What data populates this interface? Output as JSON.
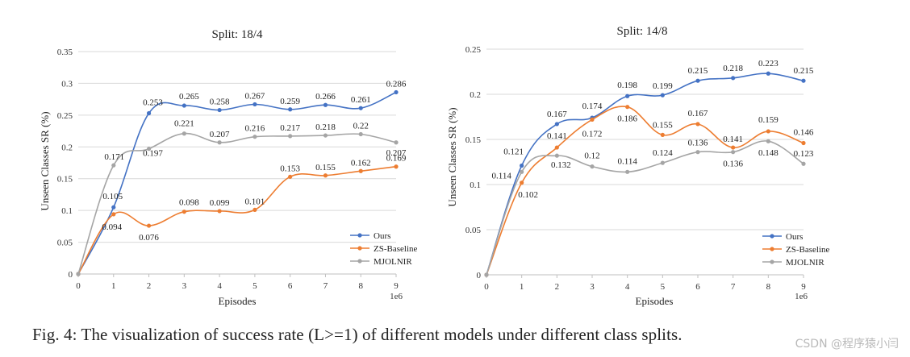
{
  "caption": "Fig. 4: The visualization of success rate (L>=1) of different models under different class splits.",
  "watermark": "CSDN @程序猿小闫",
  "colors": {
    "ours": "#4472c4",
    "zs_baseline": "#ed7d31",
    "mjolnir": "#a5a5a5",
    "grid": "#d9d9d9",
    "axis": "#bfbfbf"
  },
  "chart_data": [
    {
      "type": "line",
      "title": "Split: 18/4",
      "xlabel": "Episodes",
      "ylabel": "Unseen Classes SR (%)",
      "x_scale_label": "1e6",
      "x": [
        0,
        1,
        2,
        3,
        4,
        5,
        6,
        7,
        8,
        9
      ],
      "xlim": [
        0,
        9
      ],
      "ylim": [
        0,
        0.35
      ],
      "yticks": [
        0,
        0.05,
        0.1,
        0.15,
        0.2,
        0.25,
        0.3,
        0.35
      ],
      "ytick_labels": [
        "0",
        "0.05",
        "0.1",
        "0.15",
        "0.2",
        "0.25",
        "0.3",
        "0.35"
      ],
      "xtick_labels": [
        "0",
        "1",
        "2",
        "3",
        "4",
        "5",
        "6",
        "7",
        "8",
        "9"
      ],
      "grid": true,
      "legend_position": "bottom-right",
      "series": [
        {
          "name": "Ours",
          "color": "#4472c4",
          "values": [
            0,
            0.105,
            0.253,
            0.265,
            0.258,
            0.267,
            0.259,
            0.266,
            0.261,
            0.286
          ],
          "labels": [
            "",
            "0.105",
            "0.253",
            "0.265",
            "0.258",
            "0.267",
            "0.259",
            "0.266",
            "0.261",
            "0.286"
          ]
        },
        {
          "name": "ZS-Baseline",
          "color": "#ed7d31",
          "values": [
            0,
            0.094,
            0.076,
            0.098,
            0.099,
            0.101,
            0.153,
            0.155,
            0.162,
            0.169
          ],
          "labels": [
            "",
            "0.094",
            "0.076",
            "0.098",
            "0.099",
            "0.101",
            "0.153",
            "0.155",
            "0.162",
            "0.169"
          ]
        },
        {
          "name": "MJOLNIR",
          "color": "#a5a5a5",
          "values": [
            0,
            0.171,
            0.197,
            0.221,
            0.207,
            0.216,
            0.217,
            0.218,
            0.22,
            0.207
          ],
          "labels": [
            "",
            "0.171",
            "0.197",
            "0.221",
            "0.207",
            "0.216",
            "0.217",
            "0.218",
            "0.22",
            "0.207"
          ]
        }
      ]
    },
    {
      "type": "line",
      "title": "Split: 14/8",
      "xlabel": "Episodes",
      "ylabel": "Unseen Classes SR (%)",
      "x_scale_label": "1e6",
      "x": [
        0,
        1,
        2,
        3,
        4,
        5,
        6,
        7,
        8,
        9
      ],
      "xlim": [
        0,
        9
      ],
      "ylim": [
        0,
        0.25
      ],
      "yticks": [
        0,
        0.05,
        0.1,
        0.15,
        0.2,
        0.25
      ],
      "ytick_labels": [
        "0",
        "0.05",
        "0.1",
        "0.15",
        "0.2",
        "0.25"
      ],
      "xtick_labels": [
        "0",
        "1",
        "2",
        "3",
        "4",
        "5",
        "6",
        "7",
        "8",
        "9"
      ],
      "grid": true,
      "legend_position": "bottom-right",
      "series": [
        {
          "name": "Ours",
          "color": "#4472c4",
          "values": [
            0,
            0.121,
            0.167,
            0.174,
            0.198,
            0.199,
            0.215,
            0.218,
            0.223,
            0.215
          ],
          "labels": [
            "",
            "0.121",
            "0.167",
            "0.174",
            "0.198",
            "0.199",
            "0.215",
            "0.218",
            "0.223",
            "0.215"
          ]
        },
        {
          "name": "ZS-Baseline",
          "color": "#ed7d31",
          "values": [
            0,
            0.102,
            0.141,
            0.172,
            0.186,
            0.155,
            0.167,
            0.141,
            0.159,
            0.146
          ],
          "labels": [
            "",
            "0.102",
            "0.141",
            "0.172",
            "0.186",
            "0.155",
            "0.167",
            "0.141",
            "0.159",
            "0.146"
          ]
        },
        {
          "name": "MJOLNIR",
          "color": "#a5a5a5",
          "values": [
            0,
            0.114,
            0.132,
            0.12,
            0.114,
            0.124,
            0.136,
            0.136,
            0.148,
            0.123
          ],
          "labels": [
            "",
            "0.114",
            "0.132",
            "0.12",
            "0.114",
            "0.124",
            "0.136",
            "0.136",
            "0.148",
            "0.123"
          ]
        }
      ]
    }
  ]
}
